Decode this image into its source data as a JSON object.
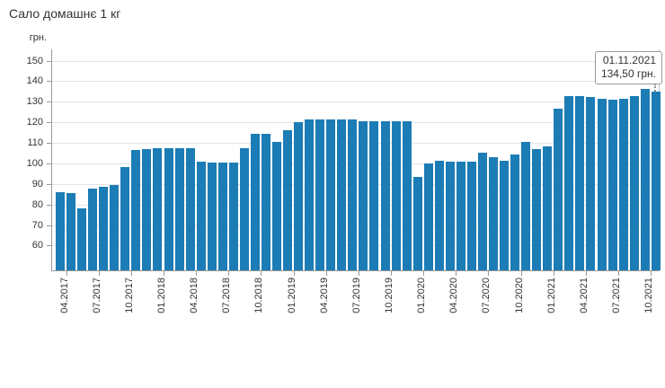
{
  "page": {
    "title": "Сало домашнє 1 кг"
  },
  "tooltip": {
    "date": "01.11.2021",
    "value": "134,50 грн."
  },
  "colors": {
    "bar": "#1c7cb5",
    "grid": "#e4e4e4",
    "axis": "#999999",
    "plot_right_border": "#cccccc",
    "text": "#333333",
    "tooltip_border": "#999999",
    "background": "#ffffff"
  },
  "chart_data": {
    "type": "bar",
    "title": "Сало домашнє 1 кг",
    "ylabel": "грн.",
    "xlabel": "",
    "ylim": [
      47.5,
      155.5
    ],
    "y_ticks": [
      60,
      70,
      80,
      90,
      100,
      110,
      120,
      130,
      140,
      150
    ],
    "grid": "horizontal",
    "legend": "none",
    "bar_color": "#1c7cb5",
    "x_label_step": 3,
    "x_tick_labels": [
      "04.2017",
      "07.2017",
      "10.2017",
      "01.2018",
      "04.2018",
      "07.2018",
      "10.2018",
      "01.2019",
      "04.2019",
      "07.2019",
      "10.2019",
      "01.2020",
      "04.2020",
      "07.2020",
      "10.2020",
      "01.2021",
      "04.2021",
      "07.2021",
      "10.2021"
    ],
    "categories": [
      "04.2017",
      "05.2017",
      "06.2017",
      "07.2017",
      "08.2017",
      "09.2017",
      "10.2017",
      "11.2017",
      "12.2017",
      "01.2018",
      "02.2018",
      "03.2018",
      "04.2018",
      "05.2018",
      "06.2018",
      "07.2018",
      "08.2018",
      "09.2018",
      "10.2018",
      "11.2018",
      "12.2018",
      "01.2019",
      "02.2019",
      "03.2019",
      "04.2019",
      "05.2019",
      "06.2019",
      "07.2019",
      "08.2019",
      "09.2019",
      "10.2019",
      "11.2019",
      "12.2019",
      "01.2020",
      "02.2020",
      "03.2020",
      "04.2020",
      "05.2020",
      "06.2020",
      "07.2020",
      "08.2020",
      "09.2020",
      "10.2020",
      "11.2020",
      "12.2020",
      "01.2021",
      "02.2021",
      "03.2021",
      "04.2021",
      "05.2021",
      "06.2021",
      "07.2021",
      "08.2021",
      "09.2021",
      "10.2021",
      "11.2021"
    ],
    "values": [
      85.5,
      85,
      77.5,
      87.5,
      88,
      89,
      98,
      106,
      106.5,
      107,
      107,
      107,
      107,
      100.5,
      100,
      100,
      100,
      107,
      114,
      114,
      110,
      115.5,
      119.5,
      121,
      121,
      121,
      121,
      121,
      120,
      120,
      120,
      120,
      120,
      93,
      99.5,
      101,
      100.5,
      100.5,
      100.5,
      105,
      102.5,
      101,
      104,
      110,
      106.5,
      108,
      126,
      132.5,
      132.5,
      132,
      131,
      130.5,
      131,
      132.5,
      136,
      134.5
    ],
    "tooltip": {
      "date": "01.11.2021",
      "value": "134,50 грн.",
      "target_category": "11.2021"
    }
  }
}
